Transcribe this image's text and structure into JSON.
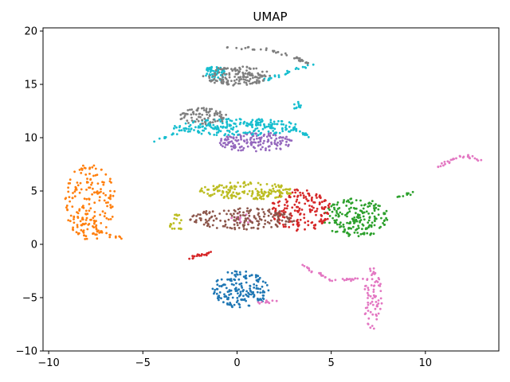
{
  "chart_data": {
    "type": "scatter",
    "title": "UMAP",
    "xlabel": "",
    "ylabel": "",
    "xlim": [
      -10.3,
      13.9
    ],
    "ylim": [
      -10,
      20.3
    ],
    "xticks": [
      -10,
      -5,
      0,
      5,
      10
    ],
    "yticks": [
      -10,
      -5,
      0,
      5,
      10,
      15,
      20
    ],
    "grid": false,
    "legend": "none",
    "series": [
      {
        "color": "#ff7f0e",
        "clusters": [
          {
            "shape": "ellipse",
            "cx": -7.8,
            "cy": 4.0,
            "rx": 1.35,
            "ry": 3.6,
            "n": 190
          },
          {
            "shape": "polyline",
            "points": [
              [
                -7.5,
                1.5
              ],
              [
                -6.8,
                0.8
              ],
              [
                -6.0,
                0.5
              ]
            ],
            "n": 15
          }
        ]
      },
      {
        "color": "#1f77b4",
        "clusters": [
          {
            "shape": "ellipse",
            "cx": 0.2,
            "cy": -4.2,
            "rx": 1.5,
            "ry": 1.8,
            "n": 170
          }
        ]
      },
      {
        "color": "#e377c2",
        "clusters": [
          {
            "shape": "ellipse",
            "cx": 7.2,
            "cy": -5.0,
            "rx": 0.5,
            "ry": 3.0,
            "n": 70
          },
          {
            "shape": "polyline",
            "points": [
              [
                3.5,
                -2.0
              ],
              [
                5.0,
                -3.4
              ],
              [
                7.2,
                -3.2
              ]
            ],
            "n": 35
          },
          {
            "shape": "polyline",
            "points": [
              [
                10.6,
                7.1
              ],
              [
                11.4,
                8.0
              ],
              [
                12.2,
                8.3
              ],
              [
                12.9,
                7.9
              ]
            ],
            "n": 30
          },
          {
            "shape": "ellipse",
            "cx": 1.6,
            "cy": -5.4,
            "rx": 0.6,
            "ry": 0.2,
            "n": 10
          },
          {
            "shape": "ellipse",
            "cx": 0.3,
            "cy": 2.5,
            "rx": 0.7,
            "ry": 0.5,
            "n": 12
          }
        ]
      },
      {
        "color": "#2ca02c",
        "clusters": [
          {
            "shape": "ellipse",
            "cx": 6.3,
            "cy": 2.5,
            "rx": 1.8,
            "ry": 1.8,
            "n": 190
          },
          {
            "shape": "polyline",
            "points": [
              [
                8.5,
                4.5
              ],
              [
                9.3,
                4.8
              ]
            ],
            "n": 10
          }
        ]
      },
      {
        "color": "#d62728",
        "clusters": [
          {
            "shape": "ellipse",
            "cx": 3.4,
            "cy": 3.2,
            "rx": 1.6,
            "ry": 2.0,
            "n": 170
          },
          {
            "shape": "polyline",
            "points": [
              [
                -2.6,
                -1.3
              ],
              [
                -2.0,
                -1.0
              ],
              [
                -1.3,
                -0.8
              ]
            ],
            "n": 20
          }
        ]
      },
      {
        "color": "#8c564b",
        "clusters": [
          {
            "shape": "ellipse",
            "cx": 0.3,
            "cy": 2.4,
            "rx": 2.8,
            "ry": 1.0,
            "n": 170
          }
        ]
      },
      {
        "color": "#bcbd22",
        "clusters": [
          {
            "shape": "ellipse",
            "cx": 0.5,
            "cy": 5.0,
            "rx": 2.5,
            "ry": 0.85,
            "n": 170
          },
          {
            "shape": "ellipse",
            "cx": -3.2,
            "cy": 2.0,
            "rx": 0.4,
            "ry": 0.8,
            "n": 20
          }
        ]
      },
      {
        "color": "#9467bd",
        "clusters": [
          {
            "shape": "ellipse",
            "cx": 1.0,
            "cy": 9.6,
            "rx": 2.0,
            "ry": 0.9,
            "n": 150
          }
        ]
      },
      {
        "color": "#17becf",
        "clusters": [
          {
            "shape": "ellipse",
            "cx": 0.0,
            "cy": 11.0,
            "rx": 3.4,
            "ry": 0.8,
            "n": 200
          },
          {
            "shape": "polyline",
            "points": [
              [
                -4.5,
                9.6
              ],
              [
                -2.5,
                10.8
              ],
              [
                0.0,
                11.3
              ],
              [
                3.0,
                10.8
              ],
              [
                4.0,
                10.0
              ]
            ],
            "n": 50
          },
          {
            "shape": "ellipse",
            "cx": -1.2,
            "cy": 16.0,
            "rx": 0.6,
            "ry": 0.7,
            "n": 50
          },
          {
            "shape": "polyline",
            "points": [
              [
                1.5,
                15.4
              ],
              [
                3.0,
                16.3
              ],
              [
                4.1,
                16.9
              ]
            ],
            "n": 25
          },
          {
            "shape": "ellipse",
            "cx": 3.2,
            "cy": 13.0,
            "rx": 0.2,
            "ry": 0.4,
            "n": 10
          }
        ]
      },
      {
        "color": "#7f7f7f",
        "clusters": [
          {
            "shape": "ellipse",
            "cx": 0.0,
            "cy": 15.8,
            "rx": 1.8,
            "ry": 0.9,
            "n": 150
          },
          {
            "shape": "polyline",
            "points": [
              [
                -0.5,
                18.5
              ],
              [
                1.5,
                18.3
              ],
              [
                3.0,
                17.6
              ],
              [
                3.8,
                17.0
              ]
            ],
            "n": 40
          },
          {
            "shape": "ellipse",
            "cx": -1.8,
            "cy": 12.0,
            "rx": 1.3,
            "ry": 0.8,
            "n": 80
          }
        ]
      }
    ]
  }
}
